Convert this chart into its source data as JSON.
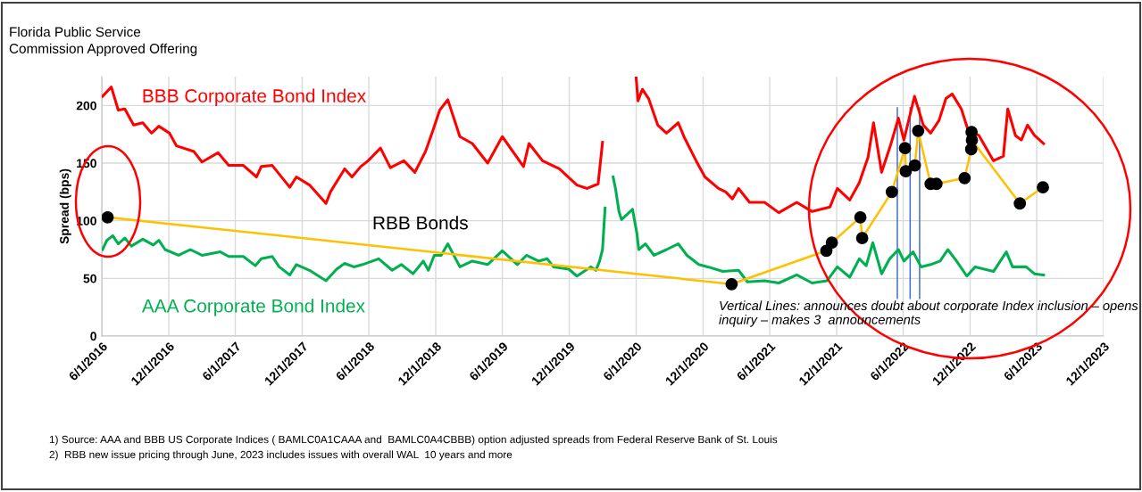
{
  "chart_data": {
    "type": "line",
    "title": "Florida Public Service\nCommission Approved Offering",
    "ylabel": "Spread (bps)",
    "ylim": [
      0,
      225
    ],
    "yticks": [
      0,
      50,
      100,
      150,
      200
    ],
    "xlim": [
      "2016-06-01",
      "2023-12-01"
    ],
    "xticks": [
      {
        "value": "2016-06-01",
        "label": "6/1/2016"
      },
      {
        "value": "2016-12-01",
        "label": "12/1/2016"
      },
      {
        "value": "2017-06-01",
        "label": "6/1/2017"
      },
      {
        "value": "2017-12-01",
        "label": "12/1/2017"
      },
      {
        "value": "2018-06-01",
        "label": "6/1/2018"
      },
      {
        "value": "2018-12-01",
        "label": "12/1/2018"
      },
      {
        "value": "2019-06-01",
        "label": "6/1/2019"
      },
      {
        "value": "2019-12-01",
        "label": "12/1/2019"
      },
      {
        "value": "2020-06-01",
        "label": "6/1/2020"
      },
      {
        "value": "2020-12-01",
        "label": "12/1/2020"
      },
      {
        "value": "2021-06-01",
        "label": "6/1/2021"
      },
      {
        "value": "2021-12-01",
        "label": "12/1/2021"
      },
      {
        "value": "2022-06-01",
        "label": "6/1/2022"
      },
      {
        "value": "2022-12-01",
        "label": "12/1/2022"
      },
      {
        "value": "2023-06-01",
        "label": "6/1/2023"
      },
      {
        "value": "2023-12-01",
        "label": "12/1/2023"
      }
    ],
    "grid": true,
    "legend": false,
    "series": [
      {
        "name": "BBB Corporate Bond Index",
        "color": "#ff0000",
        "marker": "none",
        "x": [
          "2016-06-03",
          "2016-06-27",
          "2016-07-16",
          "2016-08-03",
          "2016-08-27",
          "2016-09-21",
          "2016-10-15",
          "2016-11-04",
          "2016-12-03",
          "2016-12-22",
          "2017-02-08",
          "2017-03-02",
          "2017-04-15",
          "2017-05-14",
          "2017-06-23",
          "2017-07-29",
          "2017-08-11",
          "2017-09-10",
          "2017-10-28",
          "2017-11-15",
          "2017-12-21",
          "2018-02-04",
          "2018-02-16",
          "2018-03-27",
          "2018-04-16",
          "2018-05-10",
          "2018-05-30",
          "2018-07-03",
          "2018-07-30",
          "2018-09-05",
          "2018-10-05",
          "2018-11-03",
          "2018-11-23",
          "2018-12-12",
          "2019-01-03",
          "2019-02-05",
          "2019-03-11",
          "2019-04-22",
          "2019-06-01",
          "2019-07-29",
          "2019-08-13",
          "2019-09-19",
          "2019-11-04",
          "2019-12-22",
          "2020-01-19",
          "2020-02-18",
          "2020-03-01",
          "2020-03-10",
          "2020-04-15",
          "2020-06-01",
          "2020-06-06",
          "2020-06-18",
          "2020-07-05",
          "2020-07-30",
          "2020-08-23",
          "2020-09-24",
          "2020-10-11",
          "2020-11-12",
          "2020-12-06",
          "2021-01-12",
          "2021-02-01",
          "2021-02-19",
          "2021-03-08",
          "2021-04-07",
          "2021-05-18",
          "2021-06-26",
          "2021-08-14",
          "2021-09-25",
          "2021-11-13",
          "2021-12-03",
          "2022-01-06",
          "2022-02-01",
          "2022-02-25",
          "2022-03-12",
          "2022-04-03",
          "2022-04-27",
          "2022-05-19",
          "2022-06-03",
          "2022-07-02",
          "2022-07-26",
          "2022-08-15",
          "2022-09-07",
          "2022-09-26",
          "2022-10-13",
          "2022-11-07",
          "2022-11-26",
          "2022-12-25",
          "2023-02-03",
          "2023-03-02",
          "2023-03-14",
          "2023-04-04",
          "2023-04-20",
          "2023-05-07",
          "2023-05-26",
          "2023-06-20"
        ],
        "values": [
          208,
          216,
          196,
          197,
          183,
          185,
          176,
          182,
          176,
          165,
          160,
          151,
          159,
          148,
          148,
          138,
          147,
          148,
          129,
          138,
          131,
          115,
          125,
          145,
          138,
          147,
          152,
          163,
          146,
          152,
          142,
          160,
          178,
          196,
          205,
          173,
          167,
          150,
          173,
          147,
          167,
          152,
          145,
          131,
          128,
          132,
          168,
          null,
          null,
          224,
          204,
          214,
          206,
          183,
          176,
          185,
          172,
          152,
          138,
          128,
          125,
          119,
          128,
          116,
          116,
          107,
          116,
          108,
          112,
          128,
          118,
          133,
          155,
          185,
          142,
          165,
          189,
          170,
          208,
          183,
          176,
          187,
          206,
          210,
          197,
          178,
          174,
          152,
          156,
          197,
          174,
          170,
          183,
          174,
          167
        ]
      },
      {
        "name": "AAA Corporate Bond Index",
        "color": "#00b050",
        "marker": "none",
        "x": [
          "2016-06-03",
          "2016-06-15",
          "2016-07-01",
          "2016-07-16",
          "2016-08-03",
          "2016-08-21",
          "2016-09-21",
          "2016-10-20",
          "2016-11-04",
          "2016-11-21",
          "2016-12-28",
          "2017-01-29",
          "2017-03-02",
          "2017-04-21",
          "2017-05-14",
          "2017-06-23",
          "2017-07-26",
          "2017-08-11",
          "2017-09-10",
          "2017-09-29",
          "2017-10-28",
          "2017-11-15",
          "2017-12-21",
          "2018-02-04",
          "2018-03-05",
          "2018-03-27",
          "2018-04-21",
          "2018-05-15",
          "2018-06-28",
          "2018-08-04",
          "2018-08-29",
          "2018-09-30",
          "2018-10-28",
          "2018-11-11",
          "2018-11-27",
          "2018-12-16",
          "2019-01-03",
          "2019-02-05",
          "2019-03-11",
          "2019-04-22",
          "2019-06-01",
          "2019-07-12",
          "2019-08-06",
          "2019-09-08",
          "2019-10-02",
          "2019-10-19",
          "2019-11-30",
          "2019-12-22",
          "2020-01-29",
          "2020-02-12",
          "2020-02-22",
          "2020-03-01",
          "2020-03-08",
          "2020-03-16",
          "2020-03-19",
          "2020-03-23",
          "2020-03-30",
          "2020-04-06",
          "2020-04-15",
          "2020-04-22",
          "2020-05-09",
          "2020-05-22",
          "2020-06-03",
          "2020-06-08",
          "2020-06-26",
          "2020-07-20",
          "2020-08-23",
          "2020-09-24",
          "2020-10-18",
          "2020-11-19",
          "2020-12-14",
          "2021-01-24",
          "2021-03-08",
          "2021-04-01",
          "2021-05-18",
          "2021-06-26",
          "2021-08-14",
          "2021-09-25",
          "2021-11-05",
          "2021-12-03",
          "2022-01-06",
          "2022-02-01",
          "2022-02-20",
          "2022-03-10",
          "2022-04-03",
          "2022-04-25",
          "2022-05-19",
          "2022-06-03",
          "2022-06-28",
          "2022-07-20",
          "2022-08-15",
          "2022-09-10",
          "2022-10-01",
          "2022-10-25",
          "2022-11-22",
          "2022-12-15",
          "2023-02-03",
          "2023-03-10",
          "2023-03-27",
          "2023-05-03",
          "2023-05-26",
          "2023-06-20"
        ],
        "values": [
          75,
          83,
          87,
          80,
          85,
          78,
          84,
          79,
          83,
          75,
          70,
          75,
          70,
          73,
          69,
          69,
          61,
          67,
          69,
          60,
          53,
          62,
          57,
          48,
          58,
          63,
          60,
          62,
          67,
          57,
          62,
          54,
          65,
          57,
          70,
          70,
          80,
          60,
          65,
          62,
          74,
          62,
          70,
          65,
          67,
          60,
          58,
          52,
          60,
          57,
          65,
          75,
          111,
          null,
          null,
          null,
          138,
          127,
          108,
          101,
          106,
          110,
          89,
          75,
          80,
          70,
          75,
          80,
          70,
          62,
          60,
          56,
          57,
          47,
          48,
          46,
          53,
          46,
          48,
          60,
          51,
          67,
          61,
          81,
          54,
          67,
          75,
          65,
          73,
          60,
          62,
          65,
          75,
          65,
          52,
          60,
          56,
          73,
          60,
          60,
          54,
          53
        ]
      },
      {
        "name": "RBB Bonds",
        "color": "#ffc000",
        "marker": "circle",
        "colors": [
          "#000000",
          "#000000",
          "#000000",
          "#000000",
          "#000000",
          "#000000",
          "#000000",
          "#000000",
          "#000000",
          "#000000",
          "#000000",
          "#000000",
          "#000000",
          "#000000",
          "#000000",
          "#000000",
          "#000000",
          "#000000",
          "#000000"
        ],
        "x": [
          "2016-06-17",
          "2021-02-17",
          "2021-11-03",
          "2021-11-18",
          "2022-02-04",
          "2022-02-09",
          "2022-05-01",
          "2022-06-06",
          "2022-06-08",
          "2022-07-03",
          "2022-07-12",
          "2022-08-15",
          "2022-08-31",
          "2022-11-16",
          "2022-12-04",
          "2022-12-05",
          "2022-12-06",
          "2023-04-16",
          "2023-06-18"
        ],
        "values": [
          103,
          45,
          74,
          81,
          103,
          85,
          125,
          163,
          143,
          148,
          178,
          132,
          132,
          137,
          162,
          177,
          170,
          115,
          129
        ]
      }
    ],
    "ref_lines": [
      {
        "axis": "x",
        "value": "2022-05-16",
        "color": "#4472c4"
      },
      {
        "axis": "x",
        "value": "2022-06-20",
        "color": "#4472c4"
      },
      {
        "axis": "x",
        "value": "2022-07-16",
        "color": "#4472c4"
      }
    ],
    "annotations": [
      "Vertical Lines: announces doubt about corporate Index inclusion – opens inquiry – makes 3  announcements",
      "1) Source: AAA and BBB US Corporate Indices ( BAMLC0A1CAAA and  BAMLC0A4CBBB) option adjusted spreads from Federal Reserve Bank of St. Louis",
      "2)  RBB new issue pricing through June, 2023 includes issues with overall WAL  10 years and more"
    ]
  }
}
